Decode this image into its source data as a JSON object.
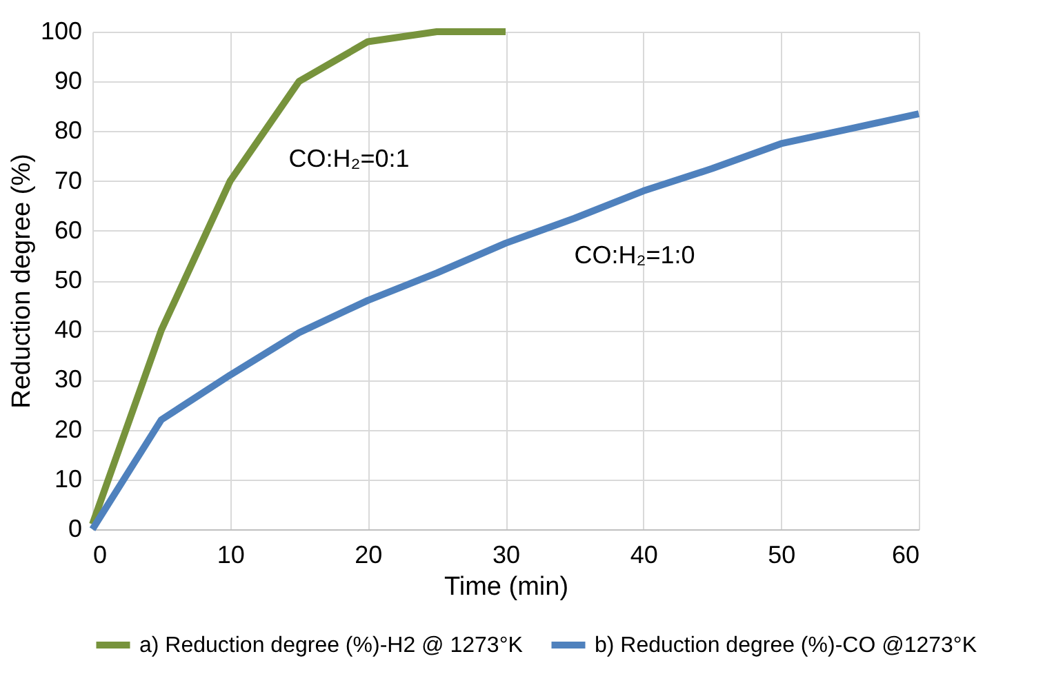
{
  "chart_data": {
    "type": "line",
    "xlabel": "Time (min)",
    "ylabel": "Reduction degree (%)",
    "x": [
      0,
      5,
      10,
      15,
      20,
      25,
      30,
      35,
      40,
      45,
      50,
      55,
      60
    ],
    "series": [
      {
        "name": "a) Reduction degree (%)-H2 @ 1273°K",
        "color": "#77933c",
        "values": [
          1,
          40,
          70,
          90,
          98,
          100,
          100,
          null,
          null,
          null,
          null,
          null,
          null
        ]
      },
      {
        "name": "b) Reduction degree (%)-CO @1273°K",
        "color": "#4f81bd",
        "values": [
          0,
          22,
          31,
          39.5,
          46,
          51.5,
          57.5,
          62.5,
          68,
          72.5,
          77.5,
          80.5,
          83.5
        ]
      }
    ],
    "annotations": [
      "CO:H₂=0:1",
      "CO:H₂=1:0"
    ],
    "xlim": [
      0,
      60
    ],
    "xticks": [
      0,
      10,
      20,
      30,
      40,
      50,
      60
    ],
    "ylim": [
      0,
      100
    ],
    "yticks": [
      0,
      10,
      20,
      30,
      40,
      50,
      60,
      70,
      80,
      90,
      100
    ],
    "grid": true,
    "legend": "bottom",
    "marker": "none",
    "line_style": "solid"
  }
}
